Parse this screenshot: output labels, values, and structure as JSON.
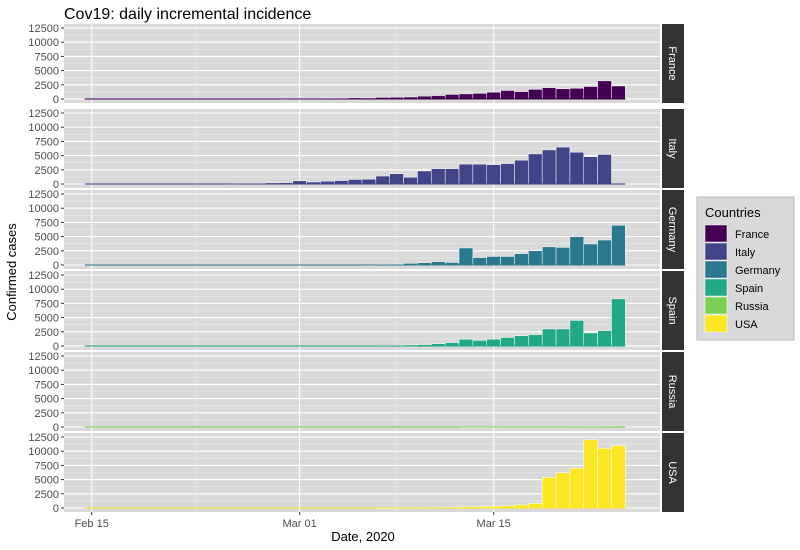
{
  "chart_data": {
    "type": "bar",
    "title": "Cov19: daily incremental incidence",
    "xlabel": "Date, 2020",
    "ylabel": "Confirmed cases",
    "x_start": "2020-02-16",
    "x_ticks": [
      {
        "day": 0,
        "label": "Feb 15"
      },
      {
        "day": 15,
        "label": "Mar 01"
      },
      {
        "day": 29,
        "label": "Mar 15"
      }
    ],
    "xlim": [
      -2,
      41
    ],
    "ylim": [
      0,
      12500
    ],
    "y_ticks": [
      0,
      2500,
      5000,
      7500,
      10000,
      12500
    ],
    "grid": true,
    "legend": {
      "title": "Countries",
      "placement": "right"
    },
    "series": [
      {
        "name": "France",
        "color": "#440154",
        "values": [
          0,
          0,
          0,
          0,
          0,
          0,
          0,
          0,
          0,
          0,
          0,
          0,
          0,
          0,
          10,
          40,
          60,
          100,
          150,
          200,
          180,
          280,
          300,
          350,
          500,
          600,
          800,
          900,
          1000,
          1200,
          1500,
          1300,
          1700,
          2000,
          1800,
          1900,
          2200,
          3200,
          2300
        ]
      },
      {
        "name": "Italy",
        "color": "#414487",
        "values": [
          0,
          0,
          0,
          0,
          0,
          0,
          0,
          0,
          0,
          0,
          50,
          100,
          150,
          200,
          250,
          560,
          350,
          500,
          600,
          800,
          850,
          1400,
          1800,
          1200,
          2300,
          2700,
          2700,
          3500,
          3500,
          3400,
          3600,
          4200,
          5300,
          6000,
          6500,
          5600,
          4800,
          5200,
          0
        ]
      },
      {
        "name": "Germany",
        "color": "#2A788E",
        "values": [
          0,
          0,
          0,
          0,
          0,
          0,
          0,
          0,
          0,
          0,
          0,
          0,
          0,
          0,
          0,
          0,
          0,
          0,
          0,
          0,
          40,
          80,
          150,
          300,
          400,
          600,
          450,
          3000,
          1300,
          1500,
          1500,
          2000,
          2500,
          3200,
          3100,
          5000,
          3700,
          4400,
          7000
        ]
      },
      {
        "name": "Spain",
        "color": "#22A884",
        "values": [
          0,
          0,
          0,
          0,
          0,
          0,
          0,
          0,
          0,
          0,
          0,
          0,
          0,
          0,
          0,
          0,
          0,
          0,
          0,
          0,
          0,
          80,
          100,
          180,
          250,
          400,
          600,
          1200,
          1000,
          1200,
          1500,
          1800,
          2000,
          3000,
          3000,
          4500,
          2300,
          2700,
          8300
        ]
      },
      {
        "name": "Russia",
        "color": "#7AD151",
        "values": [
          0,
          0,
          0,
          0,
          0,
          0,
          0,
          0,
          0,
          0,
          0,
          0,
          0,
          0,
          0,
          0,
          0,
          0,
          0,
          0,
          0,
          0,
          0,
          0,
          0,
          0,
          0,
          10,
          10,
          20,
          30,
          50,
          60,
          50,
          70,
          100,
          150,
          160,
          180
        ]
      },
      {
        "name": "USA",
        "color": "#FDE725",
        "values": [
          0,
          0,
          0,
          0,
          0,
          0,
          0,
          0,
          0,
          0,
          0,
          0,
          0,
          0,
          0,
          0,
          0,
          0,
          0,
          0,
          0,
          30,
          40,
          60,
          80,
          100,
          150,
          200,
          250,
          300,
          400,
          550,
          800,
          5400,
          6200,
          7000,
          12000,
          10500,
          11000
        ]
      }
    ]
  }
}
